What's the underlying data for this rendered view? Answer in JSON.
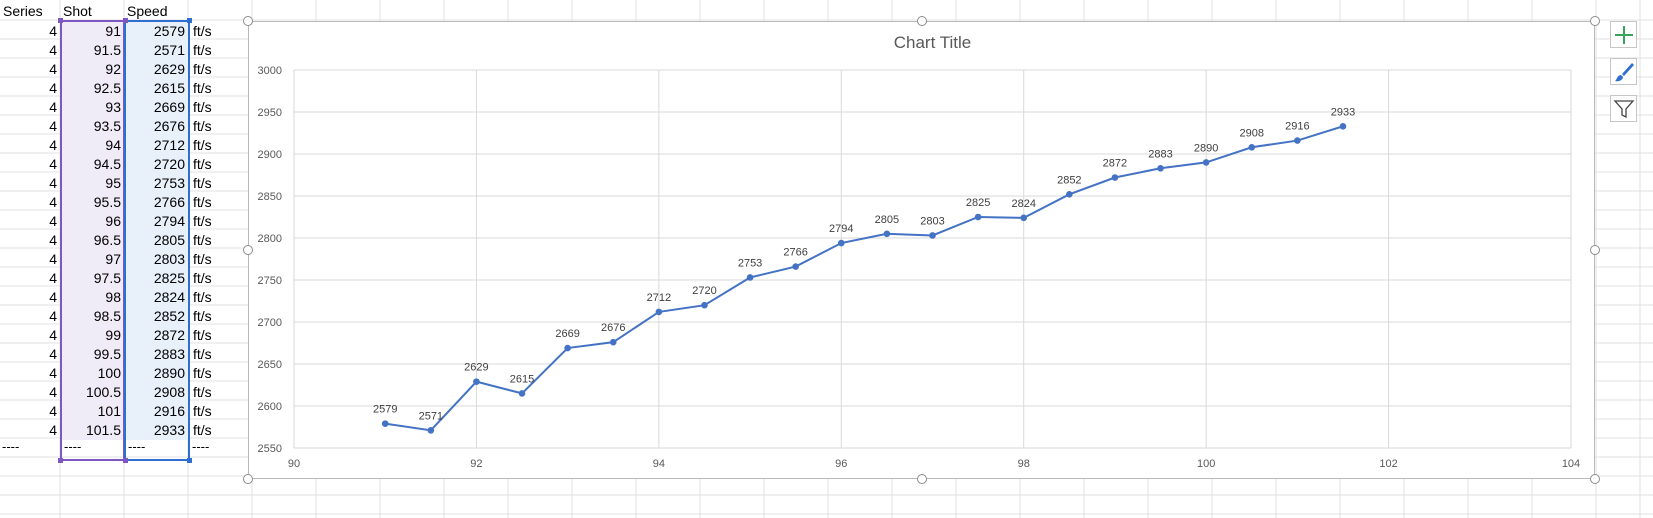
{
  "sheet": {
    "headers": {
      "series": "Series",
      "shot": "Shot",
      "speed": "Speed"
    },
    "unit": "ft/s",
    "rows": [
      {
        "series": "4",
        "shot": "91",
        "speed": "2579"
      },
      {
        "series": "4",
        "shot": "91.5",
        "speed": "2571"
      },
      {
        "series": "4",
        "shot": "92",
        "speed": "2629"
      },
      {
        "series": "4",
        "shot": "92.5",
        "speed": "2615"
      },
      {
        "series": "4",
        "shot": "93",
        "speed": "2669"
      },
      {
        "series": "4",
        "shot": "93.5",
        "speed": "2676"
      },
      {
        "series": "4",
        "shot": "94",
        "speed": "2712"
      },
      {
        "series": "4",
        "shot": "94.5",
        "speed": "2720"
      },
      {
        "series": "4",
        "shot": "95",
        "speed": "2753"
      },
      {
        "series": "4",
        "shot": "95.5",
        "speed": "2766"
      },
      {
        "series": "4",
        "shot": "96",
        "speed": "2794"
      },
      {
        "series": "4",
        "shot": "96.5",
        "speed": "2805"
      },
      {
        "series": "4",
        "shot": "97",
        "speed": "2803"
      },
      {
        "series": "4",
        "shot": "97.5",
        "speed": "2825"
      },
      {
        "series": "4",
        "shot": "98",
        "speed": "2824"
      },
      {
        "series": "4",
        "shot": "98.5",
        "speed": "2852"
      },
      {
        "series": "4",
        "shot": "99",
        "speed": "2872"
      },
      {
        "series": "4",
        "shot": "99.5",
        "speed": "2883"
      },
      {
        "series": "4",
        "shot": "100",
        "speed": "2890"
      },
      {
        "series": "4",
        "shot": "100.5",
        "speed": "2908"
      },
      {
        "series": "4",
        "shot": "101",
        "speed": "2916"
      },
      {
        "series": "4",
        "shot": "101.5",
        "speed": "2933"
      }
    ],
    "footer": [
      "----",
      "----",
      "----",
      "----"
    ]
  },
  "chart_toolbar": {
    "chart_elements": "plus-icon",
    "chart_styles": "brush-icon",
    "chart_filters": "filter-icon"
  },
  "colors": {
    "series": "#4472c4",
    "grid": "#d9d9d9",
    "title": "#595959"
  },
  "chart_data": {
    "type": "scatter",
    "title": "Chart Title",
    "xlabel": "",
    "ylabel": "",
    "xlim": [
      90,
      104
    ],
    "ylim": [
      2550,
      3000
    ],
    "xticks": [
      90,
      92,
      94,
      96,
      98,
      100,
      102,
      104
    ],
    "yticks": [
      2550,
      2600,
      2650,
      2700,
      2750,
      2800,
      2850,
      2900,
      2950,
      3000
    ],
    "grid": true,
    "legend": "none",
    "series": [
      {
        "x": [
          91,
          91.5,
          92,
          92.5,
          93,
          93.5,
          94,
          94.5,
          95,
          95.5,
          96,
          96.5,
          97,
          97.5,
          98,
          98.5,
          99,
          99.5,
          100,
          100.5,
          101,
          101.5
        ],
        "y": [
          2579,
          2571,
          2629,
          2615,
          2669,
          2676,
          2712,
          2720,
          2753,
          2766,
          2794,
          2805,
          2803,
          2825,
          2824,
          2852,
          2872,
          2883,
          2890,
          2908,
          2916,
          2933
        ],
        "data_labels": true,
        "lines": true,
        "markers": true
      }
    ]
  }
}
